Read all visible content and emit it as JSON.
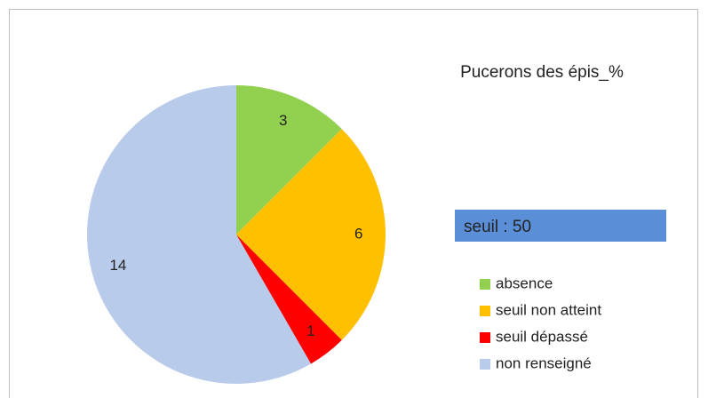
{
  "chart_data": {
    "type": "pie",
    "title": "Pucerons des épis_%",
    "categories": [
      "absence",
      "seuil non atteint",
      "seuil dépassé",
      "non renseigné"
    ],
    "values": [
      3,
      6,
      1,
      14
    ],
    "colors": [
      "#92d050",
      "#ffc000",
      "#ff0000",
      "#b9cbea"
    ],
    "annotation": "seuil : 50",
    "annotation_color": "#5a8fd8",
    "legend": "right"
  }
}
